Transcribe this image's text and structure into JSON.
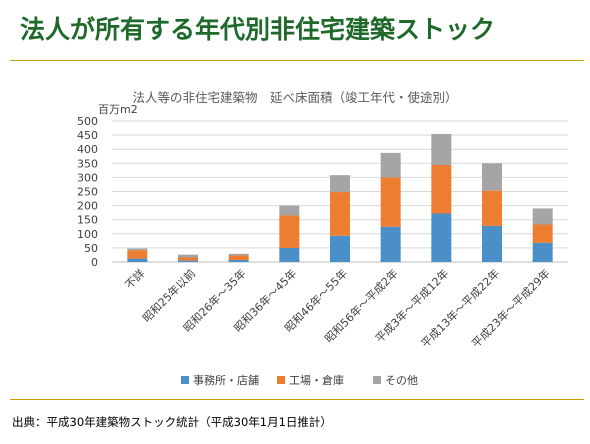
{
  "slide": {
    "title": "法人が所有する年代別非住宅建築ストック",
    "footer": "出典：平成30年建築物ストック統計（平成30年1月1日推計）"
  },
  "colors": {
    "title_green": "#1f6a2b",
    "rule_gold": "#c8a200"
  },
  "chart_data": {
    "type": "bar",
    "stacked": true,
    "title": "法人等の非住宅建築物　延べ床面積（竣工年代・使途別）",
    "unit_label": "百万m2",
    "xlabel": "",
    "ylabel": "",
    "ylim": [
      0,
      500
    ],
    "yticks": [
      0,
      50,
      100,
      150,
      200,
      250,
      300,
      350,
      400,
      450,
      500
    ],
    "grid": true,
    "legend_position": "bottom",
    "categories": [
      "不詳",
      "昭和25年以前",
      "昭和26年～35年",
      "昭和36年～45年",
      "昭和46年～55年",
      "昭和56年～平成2年",
      "平成3年～平成12年",
      "平成13年～平成22年",
      "平成23年～平成29年"
    ],
    "series": [
      {
        "name": "事務所・店舗",
        "color": "#4a8fc8",
        "values": [
          12,
          5,
          7,
          50,
          93,
          125,
          172,
          128,
          68
        ]
      },
      {
        "name": "工場・倉庫",
        "color": "#ed7d31",
        "values": [
          30,
          11,
          16,
          115,
          155,
          175,
          172,
          125,
          65
        ]
      },
      {
        "name": "その他",
        "color": "#a5a5a5",
        "values": [
          6,
          10,
          6,
          35,
          60,
          87,
          110,
          97,
          57
        ]
      }
    ]
  }
}
